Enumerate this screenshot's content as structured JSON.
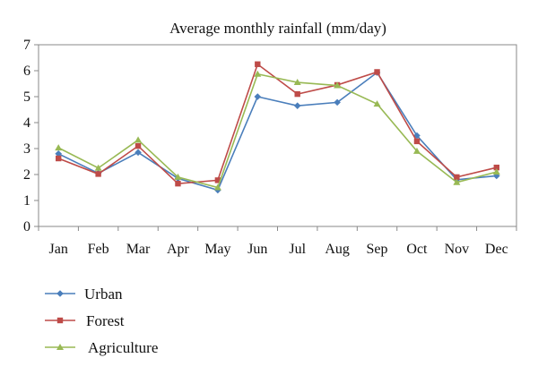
{
  "chart_data": {
    "type": "line",
    "title": "Average monthly rainfall (mm/day)",
    "xlabel": "",
    "ylabel": "",
    "categories": [
      "Jan",
      "Feb",
      "Mar",
      "Apr",
      "May",
      "Jun",
      "Jul",
      "Aug",
      "Sep",
      "Oct",
      "Nov",
      "Dec"
    ],
    "ylim": [
      0,
      7
    ],
    "yticks": [
      0,
      1,
      2,
      3,
      4,
      5,
      6,
      7
    ],
    "grid": false,
    "legend": "bottom-left",
    "series": [
      {
        "name": "Urban",
        "color": "#4a7ebb",
        "marker": "diamond",
        "values": [
          2.8,
          2.05,
          2.85,
          1.85,
          1.4,
          5.0,
          4.65,
          4.78,
          5.93,
          3.5,
          1.8,
          1.95
        ]
      },
      {
        "name": "Forest",
        "color": "#be4b48",
        "marker": "square",
        "values": [
          2.62,
          2.02,
          3.1,
          1.65,
          1.78,
          6.25,
          5.1,
          5.45,
          5.95,
          3.28,
          1.9,
          2.27
        ]
      },
      {
        "name": "Agriculture",
        "color": "#98b954",
        "marker": "triangle",
        "values": [
          3.03,
          2.25,
          3.33,
          1.9,
          1.5,
          5.87,
          5.55,
          5.43,
          4.72,
          2.9,
          1.7,
          2.1
        ]
      }
    ]
  }
}
